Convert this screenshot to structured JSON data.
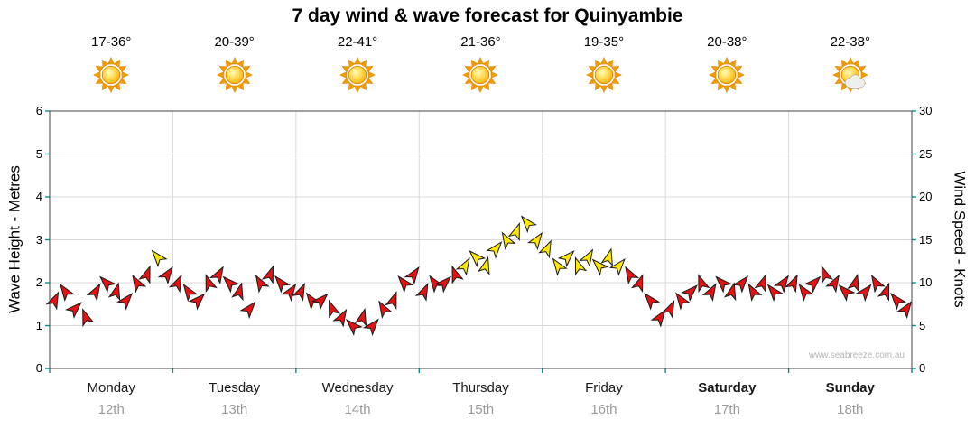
{
  "title": "7 day wind & wave forecast for Quinyambie",
  "watermark": "www.seabreeze.com.au",
  "days": [
    {
      "name": "Monday",
      "date": "12th",
      "temp": "17-36°",
      "icon": "sun",
      "bold": false
    },
    {
      "name": "Tuesday",
      "date": "13th",
      "temp": "20-39°",
      "icon": "sun",
      "bold": false
    },
    {
      "name": "Wednesday",
      "date": "14th",
      "temp": "22-41°",
      "icon": "sun",
      "bold": false
    },
    {
      "name": "Thursday",
      "date": "15th",
      "temp": "21-36°",
      "icon": "sun",
      "bold": false
    },
    {
      "name": "Friday",
      "date": "16th",
      "temp": "19-35°",
      "icon": "sun",
      "bold": false
    },
    {
      "name": "Saturday",
      "date": "17th",
      "temp": "20-38°",
      "icon": "sun",
      "bold": true
    },
    {
      "name": "Sunday",
      "date": "18th",
      "temp": "22-38°",
      "icon": "sun-cloud",
      "bold": true
    }
  ],
  "chart_data": {
    "type": "scatter",
    "series_name": "Wind speed forecast shown as direction arrows, coloured by strength",
    "samples_per_day": 12,
    "x_days": [
      "Monday 12th",
      "Tuesday 13th",
      "Wednesday 14th",
      "Thursday 15th",
      "Friday 16th",
      "Saturday 17th",
      "Sunday 18th"
    ],
    "wind_knots": [
      8,
      9,
      7,
      6,
      9,
      10,
      9,
      8,
      10,
      11,
      13,
      11,
      10,
      9,
      8,
      10,
      11,
      10,
      9,
      7,
      10,
      11,
      10,
      9,
      9,
      8,
      8,
      7,
      6,
      5,
      6,
      5,
      7,
      8,
      10,
      11,
      9,
      10,
      10,
      11,
      12,
      13,
      12,
      14,
      15,
      16,
      17,
      15,
      14,
      12,
      13,
      12,
      13,
      12,
      13,
      12,
      11,
      10,
      8,
      6,
      7,
      8,
      9,
      10,
      9,
      10,
      9,
      10,
      9,
      10,
      9,
      10,
      10,
      9,
      10,
      11,
      10,
      9,
      10,
      9,
      10,
      9,
      8,
      7
    ],
    "wind_dir_pattern_deg": [
      25,
      -35,
      45,
      -20,
      30,
      -45,
      15,
      40,
      -30,
      20,
      -40,
      35
    ],
    "color_threshold_knots": 12,
    "colors": {
      "light_wind": "#e41212",
      "moderate_wind": "#ffe800",
      "tick": "#0a8f8f",
      "grid": "#d9d9d9",
      "border": "#444444"
    },
    "y_left": {
      "label": "Wave Height - Metres",
      "range": [
        0,
        6
      ],
      "ticks": [
        0,
        1,
        2,
        3,
        4,
        5,
        6
      ]
    },
    "y_right": {
      "label": "Wind Speed - Knots",
      "range": [
        0,
        30
      ],
      "ticks": [
        0,
        5,
        10,
        15,
        20,
        25,
        30
      ]
    },
    "grid": true
  }
}
